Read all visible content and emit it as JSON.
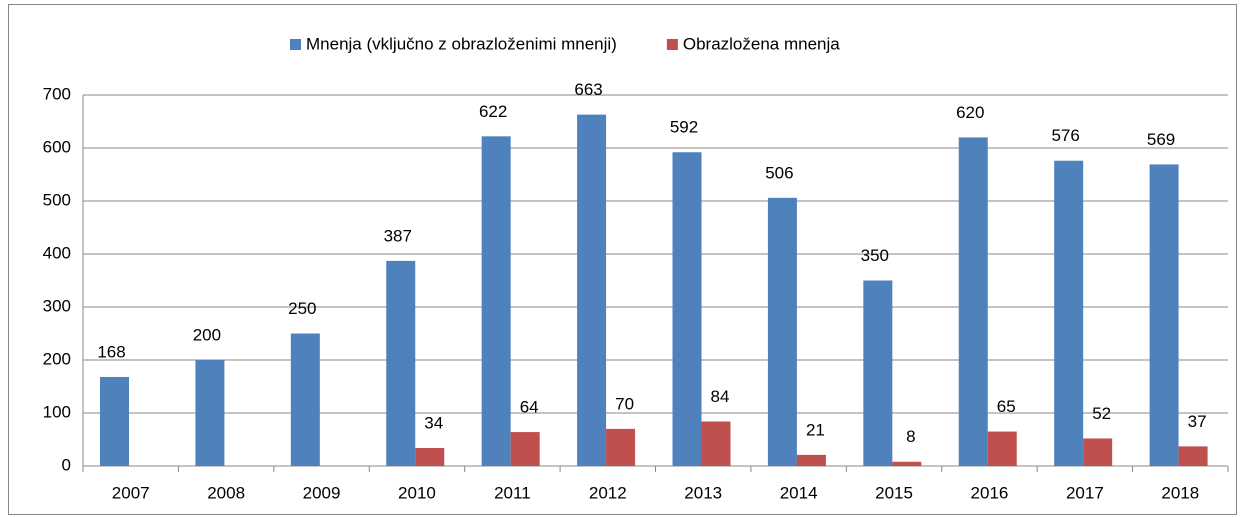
{
  "chart_data": {
    "type": "bar",
    "categories": [
      "2007",
      "2008",
      "2009",
      "2010",
      "2011",
      "2012",
      "2013",
      "2014",
      "2015",
      "2016",
      "2017",
      "2018"
    ],
    "series": [
      {
        "name": "Mnenja (vključno z obrazloženimi mnenji)",
        "color": "#4f81bd",
        "values": [
          168,
          200,
          250,
          387,
          622,
          663,
          592,
          506,
          350,
          620,
          576,
          569
        ]
      },
      {
        "name": "Obrazložena mnenja",
        "color": "#c0504d",
        "values": [
          null,
          null,
          null,
          34,
          64,
          70,
          84,
          21,
          8,
          65,
          52,
          37
        ]
      }
    ],
    "ylim": [
      0,
      700
    ],
    "yticks": [
      0,
      100,
      200,
      300,
      400,
      500,
      600,
      700
    ],
    "grid": true,
    "legend": "top"
  }
}
